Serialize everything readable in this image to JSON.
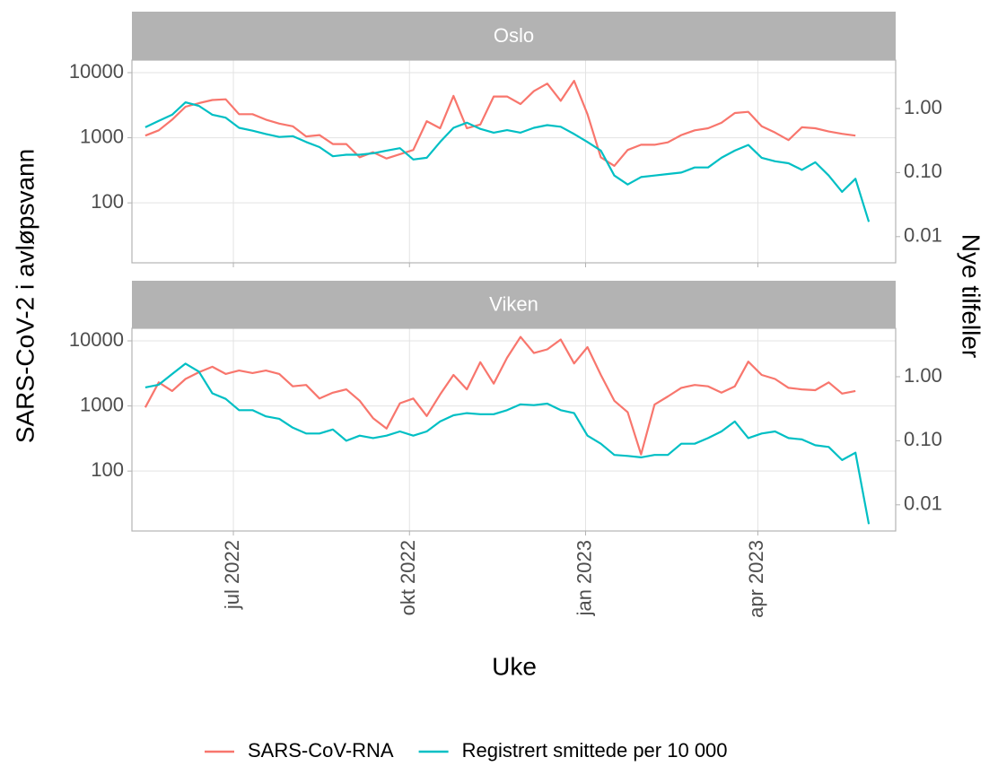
{
  "figure": {
    "xlabel": "Uke",
    "ylabel": "SARS-CoV-2 i avløpsvann",
    "y2label": "Nye tilfeller",
    "legend": "bottom"
  },
  "chart_data": [
    {
      "type": "line",
      "title": "Oslo",
      "log_y": true,
      "log_y2": true,
      "grid": true,
      "xlim": [
        "2022-W19",
        "2023-W24"
      ],
      "xticks": [
        {
          "value": "2022-07",
          "label": "jul 2022"
        },
        {
          "value": "2022-10",
          "label": "okt 2022"
        },
        {
          "value": "2023-01",
          "label": "jan 2023"
        },
        {
          "value": "2023-04",
          "label": "apr 2023"
        }
      ],
      "ylim": [
        12,
        15600
      ],
      "yticks": [
        100,
        1000,
        10000
      ],
      "y2lim": [
        0.0039,
        5.7
      ],
      "y2ticks": [
        {
          "value": 0.01,
          "label": "0.01"
        },
        {
          "value": 0.1,
          "label": "0.10"
        },
        {
          "value": 1,
          "label": "1.00"
        }
      ],
      "x": [
        "2022-W20",
        "2022-W21",
        "2022-W22",
        "2022-W23",
        "2022-W24",
        "2022-W25",
        "2022-W26",
        "2022-W27",
        "2022-W28",
        "2022-W29",
        "2022-W30",
        "2022-W31",
        "2022-W32",
        "2022-W33",
        "2022-W34",
        "2022-W35",
        "2022-W36",
        "2022-W37",
        "2022-W38",
        "2022-W39",
        "2022-W40",
        "2022-W41",
        "2022-W42",
        "2022-W43",
        "2022-W44",
        "2022-W45",
        "2022-W46",
        "2022-W47",
        "2022-W48",
        "2022-W49",
        "2022-W50",
        "2022-W51",
        "2022-W52",
        "2023-W01",
        "2023-W02",
        "2023-W03",
        "2023-W04",
        "2023-W05",
        "2023-W06",
        "2023-W07",
        "2023-W08",
        "2023-W09",
        "2023-W10",
        "2023-W11",
        "2023-W12",
        "2023-W13",
        "2023-W14",
        "2023-W15",
        "2023-W16",
        "2023-W17",
        "2023-W18",
        "2023-W19",
        "2023-W20",
        "2023-W21",
        "2023-W22"
      ],
      "series": [
        {
          "name": "SARS-CoV-RNA",
          "color": "#F8766D",
          "axis": "y",
          "values": [
            1080,
            1300,
            1900,
            3000,
            3400,
            3800,
            3900,
            2300,
            2300,
            1900,
            1650,
            1500,
            1050,
            1100,
            800,
            800,
            500,
            600,
            480,
            560,
            650,
            1800,
            1400,
            4400,
            1400,
            1600,
            4300,
            4300,
            3300,
            5200,
            6800,
            3700,
            7500,
            2300,
            500,
            370,
            650,
            780,
            780,
            850,
            1100,
            1300,
            1400,
            1700,
            2400,
            2500,
            1500,
            1200,
            920,
            1450,
            1400,
            1250,
            1150,
            1080,
            null
          ]
        },
        {
          "name": "Registrert smittede per 10 000",
          "color": "#00BFC4",
          "axis": "y2",
          "values": [
            0.51,
            0.64,
            0.8,
            1.25,
            1.1,
            0.8,
            0.72,
            0.5,
            0.45,
            0.4,
            0.36,
            0.37,
            0.3,
            0.25,
            0.18,
            0.19,
            0.19,
            0.2,
            0.22,
            0.24,
            0.16,
            0.17,
            0.3,
            0.5,
            0.6,
            0.48,
            0.42,
            0.46,
            0.42,
            0.5,
            0.55,
            0.52,
            0.4,
            0.3,
            0.22,
            0.09,
            0.065,
            0.085,
            0.09,
            0.095,
            0.1,
            0.12,
            0.12,
            0.17,
            0.22,
            0.27,
            0.17,
            0.15,
            0.14,
            0.11,
            0.145,
            0.09,
            0.05,
            0.08,
            0.017
          ]
        }
      ]
    },
    {
      "type": "line",
      "title": "Viken",
      "log_y": true,
      "log_y2": true,
      "grid": true,
      "xlim": [
        "2022-W19",
        "2023-W24"
      ],
      "xticks": [
        {
          "value": "2022-07",
          "label": "jul 2022"
        },
        {
          "value": "2022-10",
          "label": "okt 2022"
        },
        {
          "value": "2023-01",
          "label": "jan 2023"
        },
        {
          "value": "2023-04",
          "label": "apr 2023"
        }
      ],
      "ylim": [
        12,
        15600
      ],
      "yticks": [
        100,
        1000,
        10000
      ],
      "y2lim": [
        0.0039,
        5.7
      ],
      "y2ticks": [
        {
          "value": 0.01,
          "label": "0.01"
        },
        {
          "value": 0.1,
          "label": "0.10"
        },
        {
          "value": 1,
          "label": "1.00"
        }
      ],
      "x": [
        "2022-W20",
        "2022-W21",
        "2022-W22",
        "2022-W23",
        "2022-W24",
        "2022-W25",
        "2022-W26",
        "2022-W27",
        "2022-W28",
        "2022-W29",
        "2022-W30",
        "2022-W31",
        "2022-W32",
        "2022-W33",
        "2022-W34",
        "2022-W35",
        "2022-W36",
        "2022-W37",
        "2022-W38",
        "2022-W39",
        "2022-W40",
        "2022-W41",
        "2022-W42",
        "2022-W43",
        "2022-W44",
        "2022-W45",
        "2022-W46",
        "2022-W47",
        "2022-W48",
        "2022-W49",
        "2022-W50",
        "2022-W51",
        "2022-W52",
        "2023-W01",
        "2023-W02",
        "2023-W03",
        "2023-W04",
        "2023-W05",
        "2023-W06",
        "2023-W07",
        "2023-W08",
        "2023-W09",
        "2023-W10",
        "2023-W11",
        "2023-W12",
        "2023-W13",
        "2023-W14",
        "2023-W15",
        "2023-W16",
        "2023-W17",
        "2023-W18",
        "2023-W19",
        "2023-W20",
        "2023-W21",
        "2023-W22"
      ],
      "series": [
        {
          "name": "SARS-CoV-RNA",
          "color": "#F8766D",
          "axis": "y",
          "values": [
            950,
            2300,
            1700,
            2600,
            3300,
            4000,
            3100,
            3500,
            3200,
            3500,
            3100,
            2000,
            2100,
            1300,
            1600,
            1800,
            1200,
            650,
            450,
            1100,
            1300,
            700,
            1500,
            3000,
            1800,
            4700,
            2200,
            5500,
            11500,
            6500,
            7400,
            10500,
            4500,
            8000,
            3000,
            1200,
            800,
            180,
            1050,
            1400,
            1900,
            2100,
            2000,
            1600,
            2000,
            4800,
            3000,
            2600,
            1900,
            1800,
            1750,
            2300,
            1550,
            1700,
            null
          ]
        },
        {
          "name": "Registrert smittede per 10 000",
          "color": "#00BFC4",
          "axis": "y2",
          "values": [
            0.68,
            0.75,
            1.1,
            1.6,
            1.2,
            0.55,
            0.45,
            0.3,
            0.3,
            0.24,
            0.22,
            0.16,
            0.13,
            0.13,
            0.15,
            0.1,
            0.12,
            0.11,
            0.12,
            0.14,
            0.12,
            0.14,
            0.2,
            0.25,
            0.27,
            0.26,
            0.26,
            0.3,
            0.37,
            0.36,
            0.38,
            0.3,
            0.27,
            0.12,
            0.09,
            0.06,
            0.058,
            0.055,
            0.06,
            0.06,
            0.09,
            0.09,
            0.11,
            0.14,
            0.2,
            0.11,
            0.13,
            0.14,
            0.11,
            0.105,
            0.085,
            0.08,
            0.05,
            0.065,
            0.005
          ]
        }
      ]
    }
  ]
}
